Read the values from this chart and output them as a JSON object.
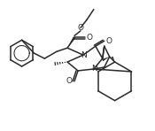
{
  "bg_color": "#ffffff",
  "line_color": "#2a2a2a",
  "line_width": 1.1,
  "figsize": [
    1.75,
    1.48
  ],
  "dpi": 100,
  "xlim": [
    0,
    175
  ],
  "ylim": [
    0,
    148
  ]
}
